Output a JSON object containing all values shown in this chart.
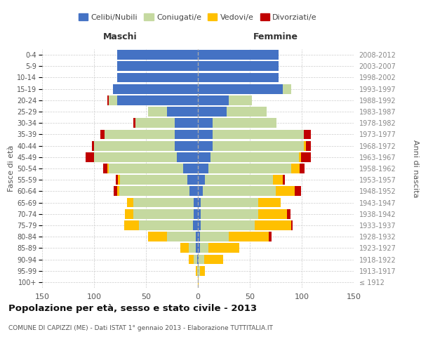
{
  "age_groups": [
    "100+",
    "95-99",
    "90-94",
    "85-89",
    "80-84",
    "75-79",
    "70-74",
    "65-69",
    "60-64",
    "55-59",
    "50-54",
    "45-49",
    "40-44",
    "35-39",
    "30-34",
    "25-29",
    "20-24",
    "15-19",
    "10-14",
    "5-9",
    "0-4"
  ],
  "birth_years": [
    "≤ 1912",
    "1913-1917",
    "1918-1922",
    "1923-1927",
    "1928-1932",
    "1933-1937",
    "1938-1942",
    "1943-1947",
    "1948-1952",
    "1953-1957",
    "1958-1962",
    "1963-1967",
    "1968-1972",
    "1973-1977",
    "1978-1982",
    "1983-1987",
    "1988-1992",
    "1993-1997",
    "1998-2002",
    "2003-2007",
    "2008-2012"
  ],
  "male": {
    "celibe": [
      0,
      0,
      1,
      2,
      2,
      5,
      4,
      4,
      8,
      10,
      14,
      20,
      22,
      22,
      22,
      30,
      78,
      82,
      78,
      78,
      78
    ],
    "coniugato": [
      0,
      1,
      3,
      7,
      28,
      52,
      58,
      58,
      68,
      65,
      72,
      80,
      78,
      68,
      38,
      18,
      8,
      0,
      0,
      0,
      0
    ],
    "vedovo": [
      0,
      1,
      5,
      8,
      18,
      14,
      8,
      6,
      2,
      2,
      1,
      0,
      0,
      0,
      0,
      0,
      0,
      0,
      0,
      0,
      0
    ],
    "divorziato": [
      0,
      0,
      0,
      0,
      0,
      0,
      0,
      0,
      3,
      2,
      4,
      8,
      2,
      4,
      2,
      0,
      1,
      0,
      0,
      0,
      0
    ]
  },
  "female": {
    "nubile": [
      0,
      0,
      1,
      2,
      2,
      3,
      3,
      3,
      5,
      7,
      10,
      12,
      14,
      14,
      14,
      28,
      30,
      82,
      78,
      78,
      78
    ],
    "coniugata": [
      0,
      2,
      5,
      8,
      28,
      52,
      55,
      55,
      70,
      65,
      80,
      85,
      88,
      88,
      62,
      38,
      22,
      8,
      0,
      0,
      0
    ],
    "vedova": [
      1,
      5,
      18,
      30,
      38,
      35,
      28,
      22,
      18,
      10,
      8,
      2,
      2,
      0,
      0,
      0,
      0,
      0,
      0,
      0,
      0
    ],
    "divorziata": [
      0,
      0,
      0,
      0,
      3,
      1,
      3,
      0,
      6,
      2,
      5,
      10,
      5,
      7,
      0,
      0,
      0,
      0,
      0,
      0,
      0
    ]
  },
  "colors": {
    "celibe": "#4472c4",
    "coniugato": "#c5d9a0",
    "vedovo": "#ffc000",
    "divorziato": "#c00000"
  },
  "xlim": 150,
  "title": "Popolazione per età, sesso e stato civile - 2013",
  "subtitle": "COMUNE DI CAPIZZI (ME) - Dati ISTAT 1° gennaio 2013 - Elaborazione TUTTITALIA.IT",
  "ylabel_left": "Fasce di età",
  "ylabel_right": "Anni di nascita",
  "xlabel_male": "Maschi",
  "xlabel_female": "Femmine",
  "legend_labels": [
    "Celibi/Nubili",
    "Coniugati/e",
    "Vedovi/e",
    "Divorziati/e"
  ],
  "bg_color": "#ffffff",
  "bar_height": 0.85
}
